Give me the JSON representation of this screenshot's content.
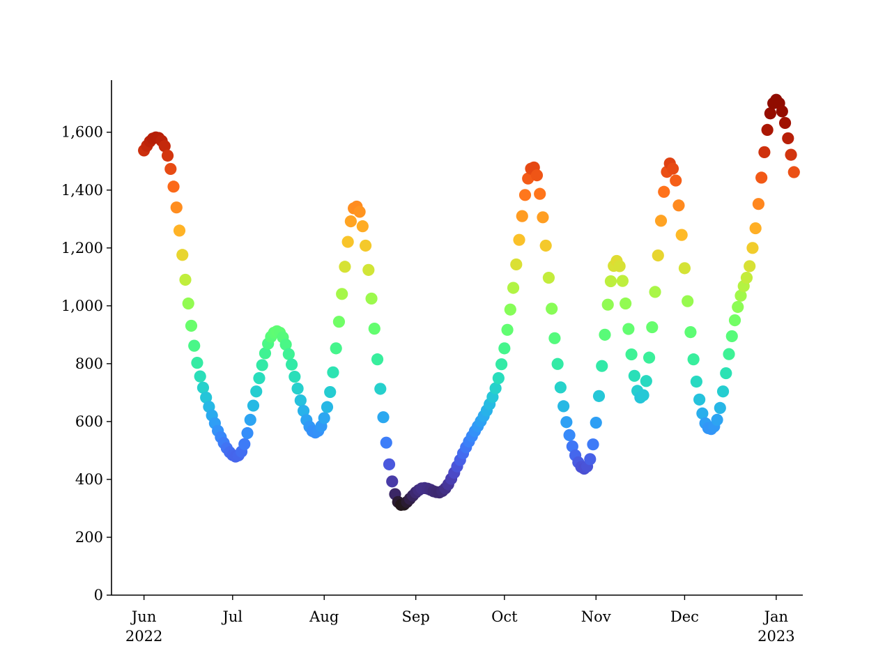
{
  "chart_data": {
    "type": "scatter",
    "title": "",
    "xlabel": "",
    "ylabel": "",
    "ylim": [
      0,
      1780
    ],
    "xlim": [
      "2022-05-21",
      "2023-01-10"
    ],
    "grid": false,
    "legend": "none",
    "colormap": "turbo (color mapped to y value)",
    "y_ticks": [
      {
        "value": 0,
        "label": "0"
      },
      {
        "value": 200,
        "label": "200"
      },
      {
        "value": 400,
        "label": "400"
      },
      {
        "value": 600,
        "label": "600"
      },
      {
        "value": 800,
        "label": "800"
      },
      {
        "value": 1000,
        "label": "1,000"
      },
      {
        "value": 1200,
        "label": "1,200"
      },
      {
        "value": 1400,
        "label": "1,400"
      },
      {
        "value": 1600,
        "label": "1,600"
      }
    ],
    "x_ticks": [
      {
        "date": "2022-06-01",
        "label": "Jun",
        "sublabel": "2022"
      },
      {
        "date": "2022-07-01",
        "label": "Jul",
        "sublabel": ""
      },
      {
        "date": "2022-08-01",
        "label": "Aug",
        "sublabel": ""
      },
      {
        "date": "2022-09-01",
        "label": "Sep",
        "sublabel": ""
      },
      {
        "date": "2022-10-01",
        "label": "Oct",
        "sublabel": ""
      },
      {
        "date": "2022-11-01",
        "label": "Nov",
        "sublabel": ""
      },
      {
        "date": "2022-12-01",
        "label": "Dec",
        "sublabel": ""
      },
      {
        "date": "2023-01-01",
        "label": "Jan",
        "sublabel": "2023"
      }
    ],
    "series": [
      {
        "x_start": "2022-06-01",
        "x_step_days": 1,
        "values": [
          1537,
          1553,
          1568,
          1578,
          1582,
          1580,
          1570,
          1552,
          1519,
          1473,
          1412,
          1340,
          1260,
          1176,
          1090,
          1008,
          931,
          862,
          803,
          756,
          717,
          683,
          651,
          621,
          594,
          568,
          546,
          526,
          508,
          494,
          484,
          479,
          483,
          496,
          522,
          560,
          606,
          655,
          704,
          750,
          795,
          836,
          869,
          893,
          907,
          912,
          907,
          891,
          866,
          833,
          797,
          755,
          714,
          673,
          637,
          605,
          582,
          567,
          562,
          568,
          584,
          612,
          650,
          702,
          770,
          853,
          945,
          1041,
          1135,
          1221,
          1292,
          1337,
          1343,
          1325,
          1275,
          1208,
          1124,
          1025,
          921,
          815,
          713,
          615,
          527,
          452,
          393,
          349,
          322,
          312,
          313,
          322,
          333,
          344,
          355,
          363,
          369,
          370,
          368,
          364,
          359,
          356,
          355,
          360,
          369,
          383,
          402,
          423,
          445,
          467,
          490,
          511,
          531,
          549,
          567,
          584,
          601,
          619,
          638,
          660,
          685,
          715,
          750,
          798,
          853,
          917,
          987,
          1062,
          1143,
          1228,
          1310,
          1383,
          1440,
          1474,
          1478,
          1451,
          1387,
          1306,
          1208,
          1097,
          990,
          888,
          799,
          718,
          653,
          598,
          553,
          514,
          483,
          459,
          443,
          437,
          445,
          470,
          521,
          596,
          688,
          792,
          900,
          1004,
          1085,
          1138,
          1155,
          1137,
          1086,
          1008,
          920,
          832,
          758,
          706,
          683,
          691,
          740,
          821,
          926,
          1048,
          1174,
          1294,
          1394,
          1463,
          1492,
          1474,
          1433,
          1347,
          1245,
          1130,
          1016,
          909,
          815,
          738,
          676,
          628,
          594,
          577,
          574,
          583,
          606,
          647,
          704,
          767,
          833,
          895,
          950,
          996,
          1035,
          1068,
          1097,
          1137,
          1200,
          1268,
          1352,
          1443,
          1531,
          1608,
          1665,
          1700,
          1712,
          1700,
          1672,
          1632,
          1579,
          1522,
          1462
        ]
      }
    ]
  }
}
